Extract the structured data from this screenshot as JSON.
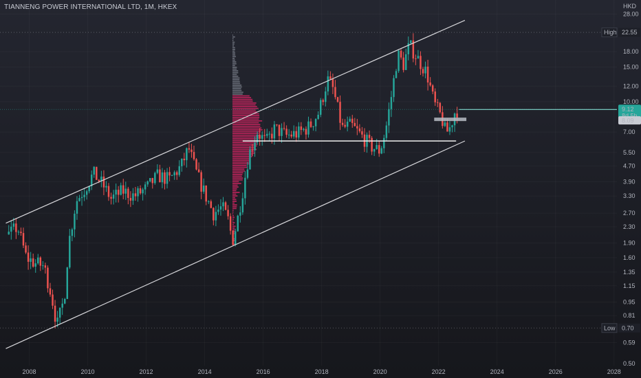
{
  "title": "TIANNENG POWER INTERNATIONAL LTD, 1M, HKEX",
  "chart_data": {
    "type": "candlestick",
    "currency": "HKD",
    "y_scale": "log",
    "ylim": [
      0.45,
      33
    ],
    "xlim": [
      2007.0,
      2028.1
    ],
    "y_ticks": [
      0.59,
      0.81,
      0.95,
      1.15,
      1.35,
      1.6,
      1.9,
      2.3,
      2.7,
      3.3,
      3.9,
      4.7,
      5.5,
      7.0,
      10.0,
      12.0,
      15.0,
      18.0,
      28.0
    ],
    "y_tick_labels": [
      "0.59",
      "0.81",
      "0.95",
      "1.15",
      "1.35",
      "1.60",
      "1.90",
      "2.30",
      "2.70",
      "3.30",
      "3.90",
      "4.70",
      "5.50",
      "7.00",
      "10.00",
      "12.00",
      "15.00",
      "18.00",
      "28.00"
    ],
    "y_bottom_label": "0.50",
    "x_ticks": [
      "2008",
      "2010",
      "2012",
      "2014",
      "2016",
      "2018",
      "2020",
      "2022",
      "2024",
      "2026",
      "2028"
    ],
    "high": {
      "label": "High",
      "value": 22.55,
      "value_label": "22.55"
    },
    "low": {
      "label": "Low",
      "value": 0.7,
      "value_label": "0.70"
    },
    "last": {
      "value": 9.12,
      "value_label": "9.12",
      "countdown_label": "8d 5h"
    },
    "marker": {
      "value": 8.09,
      "value_label": "8.09"
    },
    "channel": {
      "upper": [
        [
          2007.2,
          2.4
        ],
        [
          2022.9,
          26.0
        ]
      ],
      "lower": [
        [
          2007.2,
          0.55
        ],
        [
          2022.9,
          6.3
        ]
      ]
    },
    "support_line": {
      "value": 6.3,
      "from": 2015.3,
      "to": 2022.6
    },
    "volume_profile": {
      "x_from": 2014.95,
      "x_to": 2015.9,
      "poc_price": 7.5
    },
    "colors": {
      "up": "#26a69a",
      "down": "#ef5350",
      "profile": "#c0245c",
      "profile_light": "#9aa0ad",
      "last_badge": "#26a69a",
      "line": "#d8d8dc"
    },
    "anchors": [
      [
        2007.3,
        2.1
      ],
      [
        2007.6,
        2.3
      ],
      [
        2007.9,
        1.6
      ],
      [
        2008.2,
        1.5
      ],
      [
        2008.5,
        1.45
      ],
      [
        2008.75,
        1.05
      ],
      [
        2008.95,
        0.72
      ],
      [
        2009.2,
        1.0
      ],
      [
        2009.35,
        1.9
      ],
      [
        2009.6,
        3.1
      ],
      [
        2009.9,
        3.6
      ],
      [
        2010.2,
        4.3
      ],
      [
        2010.5,
        3.8
      ],
      [
        2010.8,
        3.2
      ],
      [
        2011.2,
        3.5
      ],
      [
        2011.6,
        3.3
      ],
      [
        2012.0,
        3.6
      ],
      [
        2012.4,
        4.2
      ],
      [
        2012.8,
        4.0
      ],
      [
        2013.2,
        4.7
      ],
      [
        2013.45,
        5.8
      ],
      [
        2013.7,
        4.4
      ],
      [
        2014.0,
        3.4
      ],
      [
        2014.3,
        2.7
      ],
      [
        2014.6,
        2.9
      ],
      [
        2014.8,
        2.5
      ],
      [
        2014.95,
        1.95
      ],
      [
        2015.1,
        2.4
      ],
      [
        2015.3,
        3.5
      ],
      [
        2015.5,
        5.3
      ],
      [
        2015.8,
        7.0
      ],
      [
        2016.1,
        6.2
      ],
      [
        2016.4,
        7.3
      ],
      [
        2016.8,
        6.7
      ],
      [
        2017.2,
        6.9
      ],
      [
        2017.6,
        7.5
      ],
      [
        2017.9,
        8.8
      ],
      [
        2018.2,
        13.0
      ],
      [
        2018.4,
        11.5
      ],
      [
        2018.7,
        7.3
      ],
      [
        2019.0,
        7.6
      ],
      [
        2019.4,
        6.6
      ],
      [
        2019.7,
        5.9
      ],
      [
        2020.0,
        5.6
      ],
      [
        2020.2,
        7.3
      ],
      [
        2020.4,
        11.0
      ],
      [
        2020.6,
        17.5
      ],
      [
        2020.8,
        15.5
      ],
      [
        2021.0,
        19.5
      ],
      [
        2021.3,
        16.5
      ],
      [
        2021.6,
        14.0
      ],
      [
        2021.85,
        9.8
      ],
      [
        2022.1,
        8.3
      ],
      [
        2022.25,
        6.9
      ],
      [
        2022.4,
        7.4
      ],
      [
        2022.55,
        8.8
      ],
      [
        2022.65,
        9.12
      ]
    ]
  }
}
